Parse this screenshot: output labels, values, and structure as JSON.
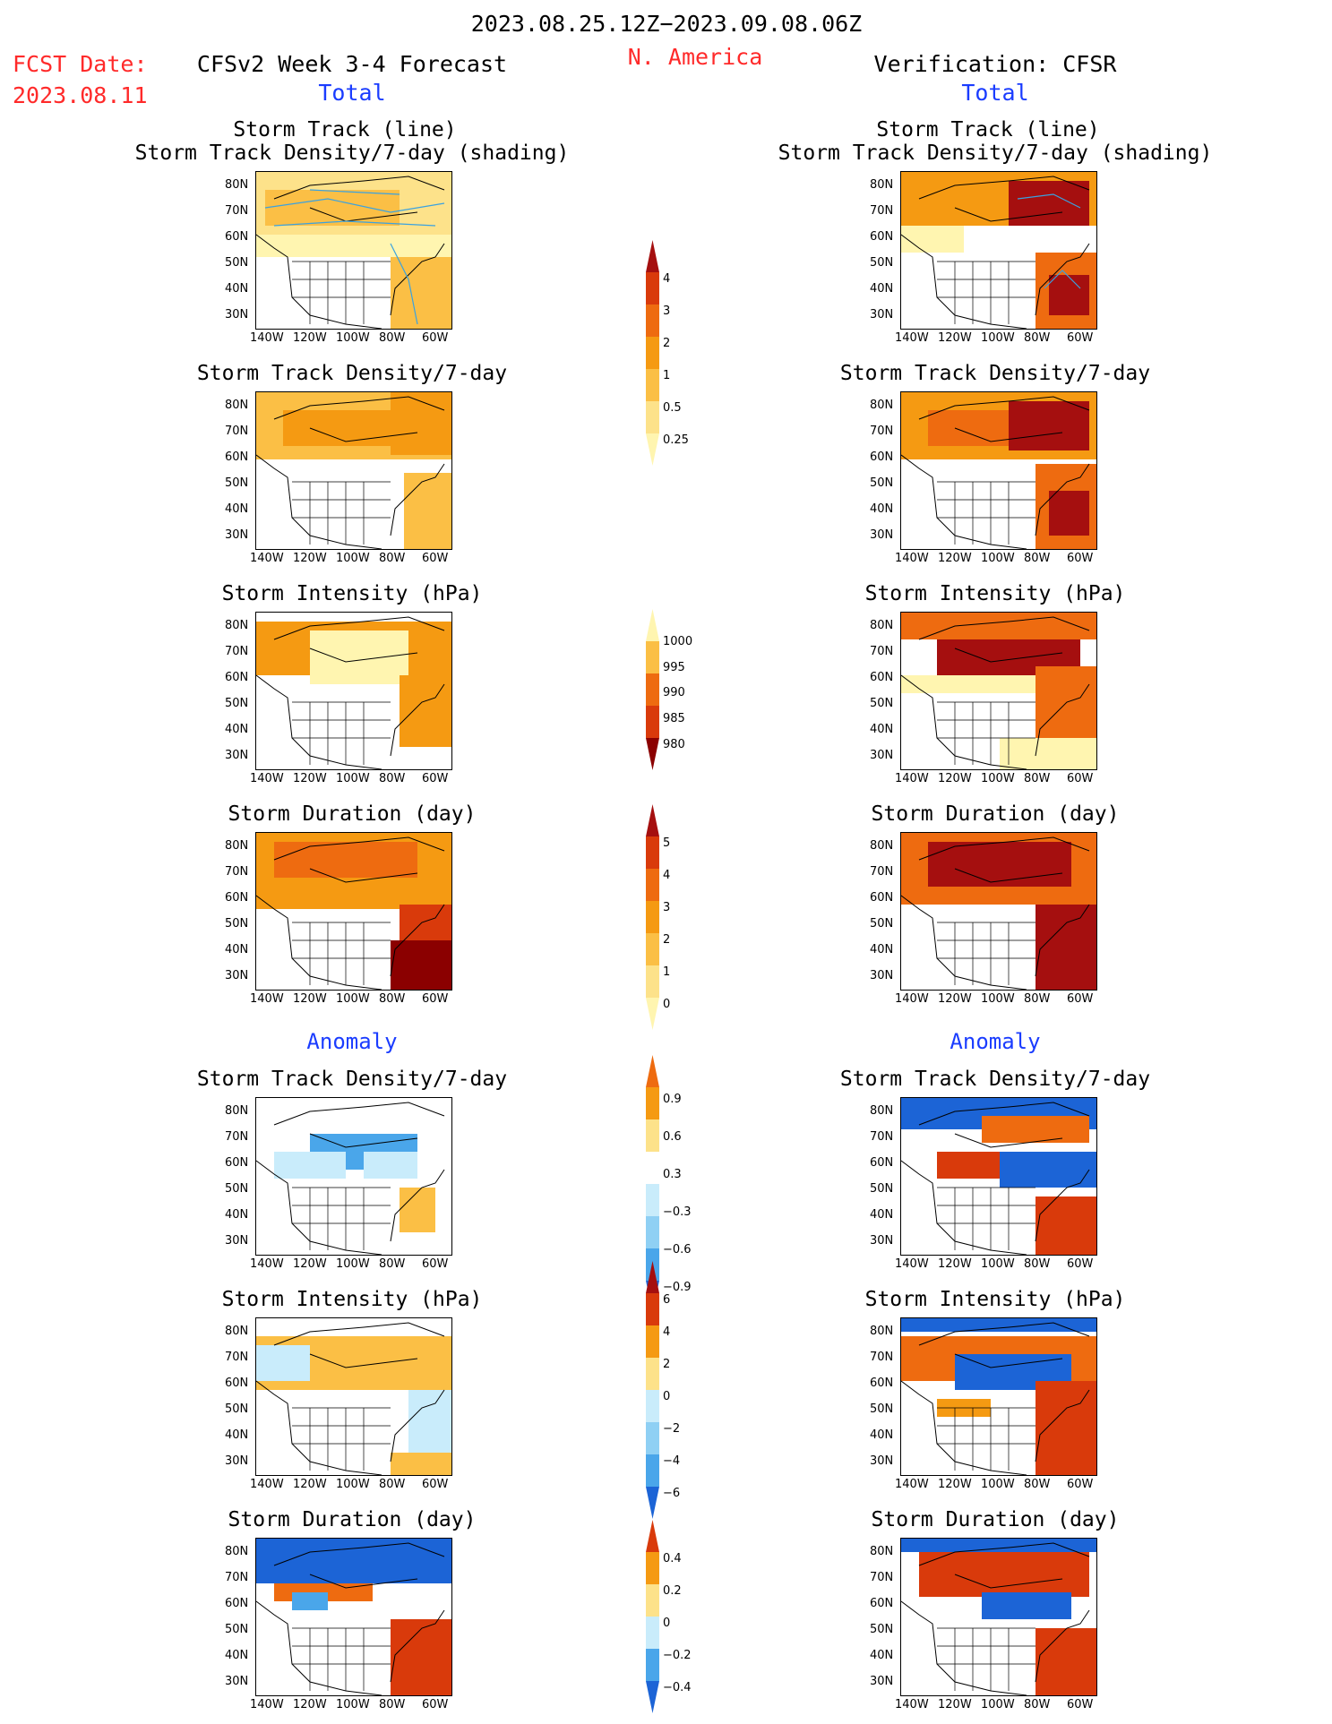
{
  "header": {
    "period": "2023.08.25.12Z−2023.09.08.06Z",
    "fcst_label": "FCST Date:",
    "fcst_date": "2023.08.11",
    "model": "CFSv2 Week 3-4 Forecast",
    "region": "N. America",
    "verification": "Verification: CFSR"
  },
  "sections": {
    "total": "Total",
    "anomaly": "Anomaly"
  },
  "axes": {
    "lat_labels": [
      "80N",
      "70N",
      "60N",
      "50N",
      "40N",
      "30N"
    ],
    "lon_labels": [
      "140W",
      "120W",
      "100W",
      "80W",
      "60W"
    ]
  },
  "panel_titles": {
    "track_line_1": "Storm Track (line)",
    "track_line_2": "Storm Track Density/7-day (shading)",
    "density": "Storm Track Density/7-day",
    "intensity": "Storm Intensity (hPa)",
    "duration": "Storm Duration (day)"
  },
  "colorbars": {
    "density": [
      "4",
      "3",
      "2",
      "1",
      "0.5",
      "0.25"
    ],
    "intensity": [
      "1000",
      "995",
      "990",
      "985",
      "980"
    ],
    "duration": [
      "5",
      "4",
      "3",
      "2",
      "1",
      "0"
    ],
    "density_anom": [
      "0.9",
      "0.6",
      "0.3",
      "−0.3",
      "−0.6",
      "−0.9"
    ],
    "intensity_anom": [
      "6",
      "4",
      "2",
      "0",
      "−2",
      "−4",
      "−6"
    ],
    "duration_anom": [
      "0.4",
      "0.2",
      "0",
      "−0.2",
      "−0.4"
    ]
  },
  "colors": {
    "c1": "#fff5b0",
    "c2": "#fde28a",
    "c3": "#fbbf45",
    "c4": "#f59a12",
    "c5": "#ee6b10",
    "c6": "#d93a0b",
    "c7": "#a50f0f",
    "c8": "#8b0000",
    "b1": "#c9ecfb",
    "b2": "#8fd0f4",
    "b3": "#4aa6ea",
    "b4": "#1c64d6",
    "track_line": "#3aa2e0"
  }
}
